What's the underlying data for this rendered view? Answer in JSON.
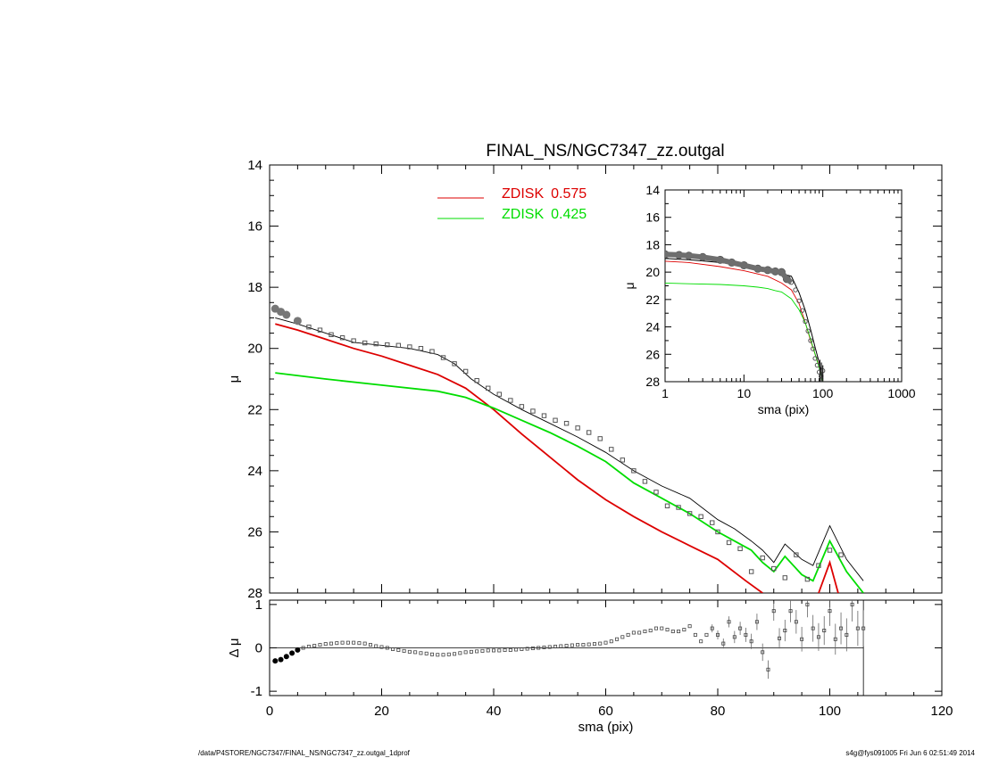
{
  "title": "FINAL_NS/NGC7347_zz.outgal",
  "footer": {
    "left": "/data/P4STORE/NGC7347/FINAL_NS/NGC7347_zz.outgal_1dprof",
    "right": "s4g@fys091005  Fri Jun  6 02:51:49 2014"
  },
  "colors": {
    "zdisk1": "#dd0000",
    "zdisk2": "#00dd00",
    "total": "#000000",
    "data": "#555555"
  },
  "chart_data": [
    {
      "type": "line",
      "panel": "main",
      "xlabel": "sma (pix)",
      "ylabel": "μ",
      "xlim": [
        0,
        120
      ],
      "ylim": [
        28,
        14
      ],
      "xticks": [
        0,
        20,
        40,
        60,
        80,
        100,
        120
      ],
      "yticks": [
        14,
        16,
        18,
        20,
        22,
        24,
        26,
        28
      ],
      "legend": [
        {
          "name": "ZDISK",
          "value": "0.575",
          "color": "#dd0000"
        },
        {
          "name": "ZDISK",
          "value": "0.425",
          "color": "#00dd00"
        }
      ],
      "series": [
        {
          "id": "zdisk1",
          "x": [
            1,
            5,
            10,
            15,
            20,
            25,
            30,
            35,
            40,
            45,
            50,
            55,
            60,
            65,
            70,
            75,
            80,
            85,
            88
          ],
          "values": [
            19.2,
            19.4,
            19.7,
            20.0,
            20.25,
            20.55,
            20.85,
            21.3,
            22.0,
            22.8,
            23.55,
            24.3,
            24.95,
            25.5,
            26.0,
            26.45,
            26.9,
            27.6,
            28.0
          ]
        },
        {
          "id": "zdisk1_spike",
          "x": [
            98,
            100,
            101.5
          ],
          "values": [
            28.0,
            27.0,
            28.0
          ]
        },
        {
          "id": "zdisk2",
          "x": [
            1,
            10,
            20,
            30,
            35,
            40,
            45,
            50,
            55,
            60,
            65,
            70,
            75,
            80,
            83,
            86,
            88,
            90,
            92,
            95,
            97,
            100,
            103,
            106
          ],
          "values": [
            20.8,
            21.0,
            21.2,
            21.4,
            21.6,
            21.95,
            22.35,
            22.75,
            23.2,
            23.7,
            24.4,
            24.9,
            25.4,
            26.0,
            26.3,
            26.6,
            27.0,
            27.3,
            26.8,
            27.4,
            27.6,
            26.3,
            27.3,
            28.0
          ]
        },
        {
          "id": "total",
          "x": [
            1,
            5,
            10,
            15,
            20,
            25,
            30,
            33,
            36,
            40,
            45,
            50,
            55,
            60,
            65,
            70,
            75,
            80,
            83,
            86,
            88,
            90,
            92,
            95,
            97,
            100,
            103,
            106
          ],
          "values": [
            19.0,
            19.2,
            19.5,
            19.8,
            19.9,
            20.0,
            20.2,
            20.5,
            21.0,
            21.5,
            22.0,
            22.45,
            22.9,
            23.4,
            24.0,
            24.5,
            24.9,
            25.6,
            25.9,
            26.3,
            26.6,
            27.0,
            26.4,
            26.9,
            27.1,
            25.8,
            26.9,
            27.6
          ]
        },
        {
          "id": "data",
          "x": [
            1,
            2,
            3,
            5,
            7,
            9,
            11,
            13,
            15,
            17,
            19,
            21,
            23,
            25,
            27,
            29,
            31,
            33,
            35,
            37,
            39,
            41,
            43,
            45,
            47,
            49,
            51,
            53,
            55,
            57,
            59,
            61,
            63,
            65,
            67,
            69,
            71,
            73,
            75,
            77,
            79,
            80,
            82,
            84,
            86,
            88,
            90,
            92,
            94,
            96,
            98,
            100,
            102
          ],
          "values": [
            18.7,
            18.8,
            18.9,
            19.1,
            19.3,
            19.4,
            19.55,
            19.65,
            19.75,
            19.82,
            19.85,
            19.88,
            19.9,
            19.95,
            20.0,
            20.1,
            20.3,
            20.5,
            20.75,
            21.05,
            21.3,
            21.5,
            21.7,
            21.9,
            22.05,
            22.2,
            22.35,
            22.45,
            22.6,
            22.75,
            22.95,
            23.3,
            23.65,
            24.0,
            24.35,
            24.7,
            25.15,
            25.2,
            25.4,
            25.5,
            25.7,
            26.0,
            26.35,
            26.55,
            27.3,
            26.85,
            27.2,
            27.5,
            26.75,
            27.55,
            27.1,
            26.6,
            26.75
          ]
        }
      ]
    },
    {
      "type": "scatter",
      "panel": "residuals",
      "xlabel": "sma (pix)",
      "ylabel": "Δ μ",
      "xlim": [
        0,
        120
      ],
      "ylim": [
        -1.1,
        1.1
      ],
      "yticks": [
        -1,
        0,
        1
      ],
      "x": [
        1,
        2,
        3,
        4,
        5,
        6,
        7,
        8,
        9,
        10,
        11,
        12,
        13,
        14,
        15,
        16,
        17,
        18,
        19,
        20,
        21,
        22,
        23,
        24,
        25,
        26,
        27,
        28,
        29,
        30,
        31,
        32,
        33,
        34,
        35,
        36,
        37,
        38,
        39,
        40,
        41,
        42,
        43,
        44,
        45,
        46,
        47,
        48,
        49,
        50,
        51,
        52,
        53,
        54,
        55,
        56,
        57,
        58,
        59,
        60,
        61,
        62,
        63,
        64,
        65,
        66,
        67,
        68,
        69,
        70,
        71,
        72,
        73,
        74,
        75,
        76,
        77,
        78,
        79,
        80,
        81,
        82,
        83,
        84,
        85,
        86,
        87,
        88,
        89,
        90,
        91,
        92,
        93,
        94,
        95,
        96,
        97,
        98,
        99,
        100,
        101,
        102,
        103,
        104,
        105,
        106
      ],
      "values": [
        -0.3,
        -0.27,
        -0.2,
        -0.12,
        -0.05,
        0.0,
        0.03,
        0.05,
        0.07,
        0.09,
        0.1,
        0.11,
        0.12,
        0.12,
        0.12,
        0.11,
        0.1,
        0.07,
        0.04,
        0.02,
        0.0,
        -0.03,
        -0.05,
        -0.07,
        -0.09,
        -0.1,
        -0.12,
        -0.13,
        -0.15,
        -0.16,
        -0.16,
        -0.15,
        -0.14,
        -0.12,
        -0.1,
        -0.09,
        -0.08,
        -0.07,
        -0.06,
        -0.06,
        -0.06,
        -0.05,
        -0.05,
        -0.04,
        -0.03,
        -0.02,
        -0.01,
        0.0,
        0.01,
        0.02,
        0.03,
        0.04,
        0.05,
        0.06,
        0.07,
        0.07,
        0.08,
        0.09,
        0.1,
        0.12,
        0.15,
        0.2,
        0.25,
        0.3,
        0.35,
        0.35,
        0.38,
        0.4,
        0.45,
        0.45,
        0.42,
        0.38,
        0.38,
        0.42,
        0.5,
        0.3,
        0.15,
        0.3,
        0.45,
        0.3,
        0.1,
        0.6,
        0.25,
        0.45,
        0.3,
        0.15,
        0.6,
        -0.1,
        -0.5,
        0.85,
        0.22,
        0.4,
        0.85,
        0.6,
        0.2,
        1.0,
        0.45,
        0.25,
        0.4,
        0.85,
        0.2,
        0.45,
        0.3,
        1.0,
        0.45,
        0.45
      ],
      "xticks": [
        0,
        20,
        40,
        60,
        80,
        100,
        120
      ]
    },
    {
      "type": "line",
      "panel": "inset",
      "xlabel": "sma (pix)",
      "ylabel": "μ",
      "xscale": "log",
      "xlim": [
        1,
        1000
      ],
      "ylim": [
        28,
        14
      ],
      "xticks": [
        1,
        10,
        100,
        1000
      ],
      "yticks": [
        14,
        16,
        18,
        20,
        22,
        24,
        26,
        28
      ],
      "series": [
        {
          "id": "zdisk1",
          "x": [
            1,
            2,
            5,
            10,
            20,
            30,
            40,
            50,
            60,
            70,
            80,
            90,
            100
          ],
          "values": [
            19.2,
            19.3,
            19.6,
            19.9,
            20.3,
            20.8,
            21.3,
            22.3,
            23.7,
            25.0,
            26.0,
            26.9,
            28.0
          ]
        },
        {
          "id": "zdisk2",
          "x": [
            1,
            2,
            5,
            10,
            15,
            20,
            25,
            30,
            40,
            50,
            60,
            70,
            80,
            90,
            100
          ],
          "values": [
            20.8,
            20.85,
            20.9,
            21.0,
            21.1,
            21.2,
            21.35,
            21.45,
            21.95,
            22.75,
            23.7,
            24.9,
            26.0,
            27.0,
            28.0
          ]
        },
        {
          "id": "total",
          "x": [
            1,
            2,
            5,
            10,
            20,
            30,
            40,
            50,
            60,
            70,
            80,
            90,
            100
          ],
          "values": [
            19.0,
            19.1,
            19.3,
            19.5,
            19.9,
            20.1,
            20.3,
            21.5,
            22.8,
            24.2,
            25.5,
            26.6,
            27.8
          ]
        },
        {
          "id": "data",
          "x": [
            1,
            1.5,
            2,
            3,
            5,
            7,
            10,
            15,
            20,
            25,
            30,
            35,
            40,
            45,
            50,
            55,
            60,
            65,
            70,
            75,
            80,
            85,
            90,
            95,
            100
          ],
          "values": [
            18.7,
            18.75,
            18.8,
            18.9,
            19.1,
            19.3,
            19.5,
            19.75,
            19.85,
            19.95,
            20.0,
            20.5,
            20.75,
            21.3,
            22.1,
            22.8,
            23.6,
            24.3,
            25.0,
            25.6,
            26.3,
            26.8,
            27.3,
            27.6,
            27.2
          ]
        }
      ]
    }
  ]
}
